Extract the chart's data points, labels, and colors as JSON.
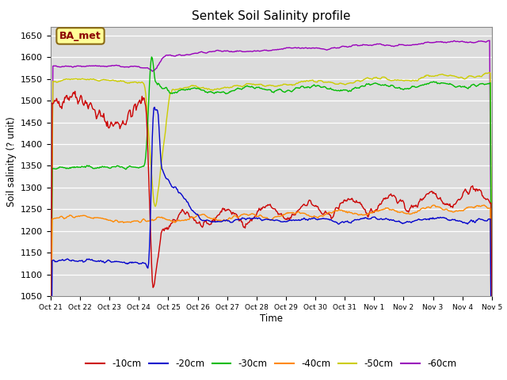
{
  "title": "Sentek Soil Salinity profile",
  "ylabel": "Soil salinity (? unit)",
  "xlabel": "Time",
  "ylim": [
    1050,
    1670
  ],
  "yticks": [
    1050,
    1100,
    1150,
    1200,
    1250,
    1300,
    1350,
    1400,
    1450,
    1500,
    1550,
    1600,
    1650
  ],
  "bg_color": "#dcdcdc",
  "annotation_text": "BA_met",
  "annotation_color": "#8b0000",
  "annotation_bg": "#ffff99",
  "colors": {
    "-10cm": "#cc0000",
    "-20cm": "#0000cc",
    "-30cm": "#00bb00",
    "-40cm": "#ff8800",
    "-50cm": "#cccc00",
    "-60cm": "#9900bb"
  },
  "legend_labels": [
    "-10cm",
    "-20cm",
    "-30cm",
    "-40cm",
    "-50cm",
    "-60cm"
  ],
  "tick_labels": [
    "Oct 21",
    "Oct 22",
    "Oct 23",
    "Oct 24",
    "Oct 25",
    "Oct 26",
    "Oct 27",
    "Oct 28",
    "Oct 29",
    "Oct 30",
    "Oct 31",
    "Nov 1",
    "Nov 2",
    "Nov 3",
    "Nov 4",
    "Nov 5"
  ],
  "n_days": 15,
  "event_t": 3.3
}
